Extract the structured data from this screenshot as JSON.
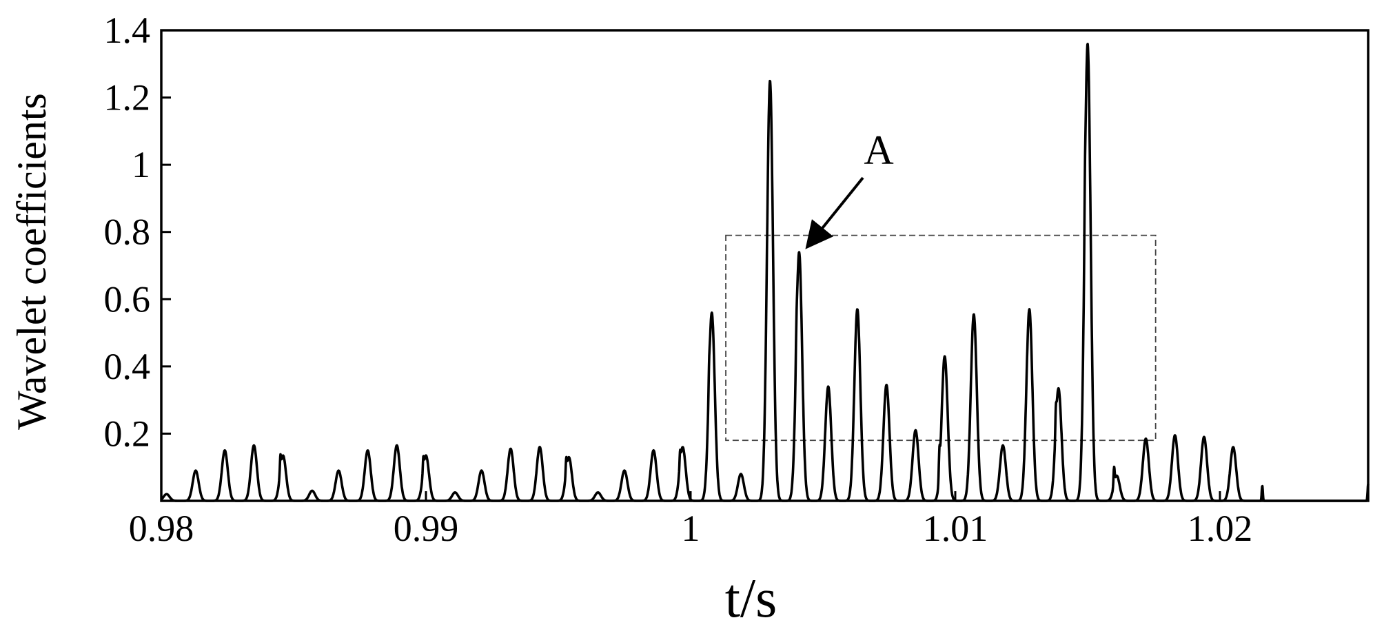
{
  "chart_data": {
    "type": "line",
    "title": "",
    "xlabel": "t/s",
    "ylabel": "Wavelet coefficients",
    "xlim": [
      0.98,
      1.0256
    ],
    "ylim": [
      0,
      1.4
    ],
    "x_ticks": [
      {
        "value": 0.98,
        "label": "0.98"
      },
      {
        "value": 0.99,
        "label": "0.99"
      },
      {
        "value": 1.0,
        "label": "1"
      },
      {
        "value": 1.01,
        "label": "1.01"
      },
      {
        "value": 1.02,
        "label": "1.02"
      }
    ],
    "y_ticks": [
      {
        "value": 0.2,
        "label": "0.2"
      },
      {
        "value": 0.4,
        "label": "0.4"
      },
      {
        "value": 0.6,
        "label": "0.6"
      },
      {
        "value": 0.8,
        "label": "0.8"
      },
      {
        "value": 1.0,
        "label": "1"
      },
      {
        "value": 1.2,
        "label": "1.2"
      },
      {
        "value": 1.4,
        "label": "1.4"
      }
    ],
    "grid": false,
    "legend": "none",
    "line_color": "#000000",
    "series": [
      {
        "peaks": [
          {
            "t": 0.9802,
            "amp": 0.02
          },
          {
            "t": 0.9813,
            "amp": 0.09
          },
          {
            "t": 0.9824,
            "amp": 0.15
          },
          {
            "t": 0.9835,
            "amp": 0.165
          },
          {
            "t": 0.9846,
            "amp": 0.135
          },
          {
            "t": 0.9857,
            "amp": 0.03
          },
          {
            "t": 0.9867,
            "amp": 0.09
          },
          {
            "t": 0.9878,
            "amp": 0.15
          },
          {
            "t": 0.9889,
            "amp": 0.165
          },
          {
            "t": 0.99,
            "amp": 0.135
          },
          {
            "t": 0.9911,
            "amp": 0.025
          },
          {
            "t": 0.9921,
            "amp": 0.09
          },
          {
            "t": 0.9932,
            "amp": 0.155
          },
          {
            "t": 0.9943,
            "amp": 0.16
          },
          {
            "t": 0.9954,
            "amp": 0.13
          },
          {
            "t": 0.9965,
            "amp": 0.025
          },
          {
            "t": 0.9975,
            "amp": 0.09
          },
          {
            "t": 0.9986,
            "amp": 0.15
          },
          {
            "t": 0.9997,
            "amp": 0.16
          },
          {
            "t": 1.0008,
            "amp": 0.56
          },
          {
            "t": 1.0019,
            "amp": 0.08
          },
          {
            "t": 1.003,
            "amp": 1.25
          },
          {
            "t": 1.0041,
            "amp": 0.74
          },
          {
            "t": 1.0052,
            "amp": 0.34
          },
          {
            "t": 1.0063,
            "amp": 0.57
          },
          {
            "t": 1.0074,
            "amp": 0.345
          },
          {
            "t": 1.0085,
            "amp": 0.21
          },
          {
            "t": 1.0096,
            "amp": 0.43
          },
          {
            "t": 1.0107,
            "amp": 0.555
          },
          {
            "t": 1.0118,
            "amp": 0.165
          },
          {
            "t": 1.0128,
            "amp": 0.57
          },
          {
            "t": 1.0139,
            "amp": 0.335
          },
          {
            "t": 1.015,
            "amp": 1.36
          },
          {
            "t": 1.0161,
            "amp": 0.075
          },
          {
            "t": 1.0172,
            "amp": 0.185
          },
          {
            "t": 1.0183,
            "amp": 0.195
          },
          {
            "t": 1.0194,
            "amp": 0.19
          },
          {
            "t": 1.0205,
            "amp": 0.16
          }
        ],
        "spikes": [
          {
            "t": 0.9845,
            "amp": 0.045
          },
          {
            "t": 0.9899,
            "amp": 0.04
          },
          {
            "t": 0.9953,
            "amp": 0.04
          },
          {
            "t": 0.9996,
            "amp": 0.04
          },
          {
            "t": 1.0007,
            "amp": 0.04
          },
          {
            "t": 1.004,
            "amp": 0.05
          },
          {
            "t": 1.0094,
            "amp": 0.07
          },
          {
            "t": 1.0138,
            "amp": 0.055
          },
          {
            "t": 1.0149,
            "amp": 0.07
          },
          {
            "t": 1.016,
            "amp": 0.05
          },
          {
            "t": 1.0216,
            "amp": 0.045
          },
          {
            "t": 1.0256,
            "amp": 0.05
          }
        ]
      }
    ],
    "annotations": [
      {
        "label": "A",
        "box": {
          "x0": 1.00133,
          "x1": 1.01757,
          "y0": 0.18,
          "y1": 0.79
        },
        "arrow_to": {
          "t": 1.0044,
          "y": 0.755
        }
      }
    ]
  }
}
